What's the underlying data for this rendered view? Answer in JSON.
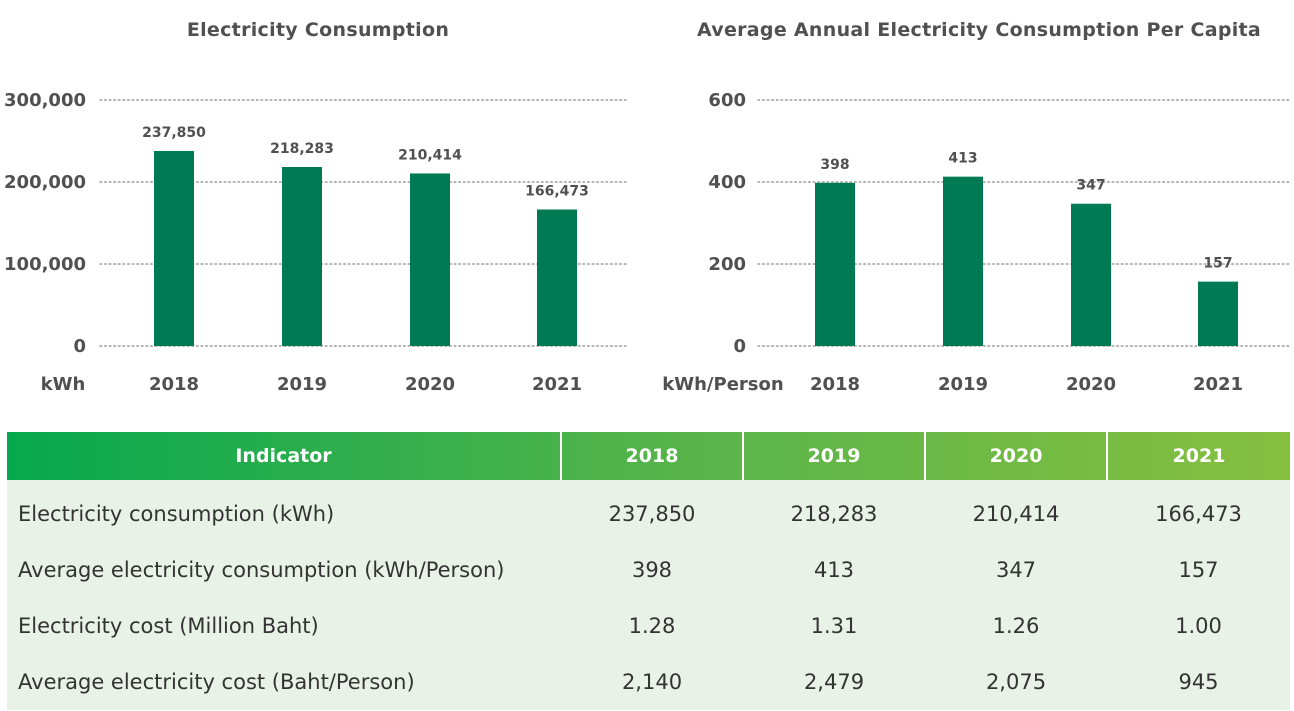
{
  "colors": {
    "bar": "#007a53",
    "grid": "#9e9e9e",
    "header_start": "#06a84e",
    "header_end": "#86bf3f",
    "row_bg": "#e8f2e6"
  },
  "chart_data": [
    {
      "type": "bar",
      "title": "Electricity Consumption",
      "unit_label": "kWh",
      "categories": [
        "2018",
        "2019",
        "2020",
        "2021"
      ],
      "values": [
        237850,
        218283,
        210414,
        166473
      ],
      "value_labels": [
        "237,850",
        "218,283",
        "210,414",
        "166,473"
      ],
      "yticks": [
        "0",
        "100,000",
        "200,000",
        "300,000"
      ],
      "ylim": [
        0,
        300000
      ],
      "grid": true
    },
    {
      "type": "bar",
      "title": "Average Annual Electricity Consumption Per Capita",
      "unit_label": "kWh/Person",
      "categories": [
        "2018",
        "2019",
        "2020",
        "2021"
      ],
      "values": [
        398,
        413,
        347,
        157
      ],
      "value_labels": [
        "398",
        "413",
        "347",
        "157"
      ],
      "yticks": [
        "0",
        "200",
        "400",
        "600"
      ],
      "ylim": [
        0,
        600
      ],
      "grid": true
    }
  ],
  "table": {
    "headers": [
      "Indicator",
      "2018",
      "2019",
      "2020",
      "2021"
    ],
    "rows": [
      [
        "Electricity consumption (kWh)",
        "237,850",
        "218,283",
        "210,414",
        "166,473"
      ],
      [
        "Average electricity consumption (kWh/Person)",
        "398",
        "413",
        "347",
        "157"
      ],
      [
        "Electricity cost (Million Baht)",
        "1.28",
        "1.31",
        "1.26",
        "1.00"
      ],
      [
        "Average electricity cost (Baht/Person)",
        "2,140",
        "2,479",
        "2,075",
        "945"
      ]
    ]
  }
}
